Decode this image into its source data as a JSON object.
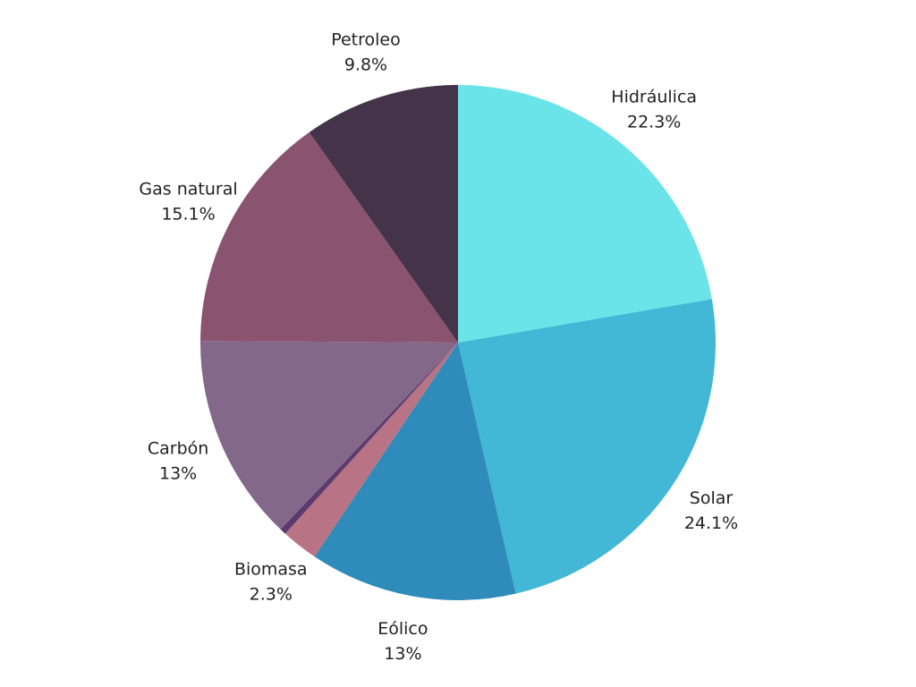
{
  "chart_data": {
    "type": "pie",
    "categories": [
      "Hidráulica",
      "Solar",
      "Eólico",
      "Biomasa",
      null,
      "Carbón",
      "Gas natural",
      "Petroleo"
    ],
    "values": [
      22.3,
      24.1,
      13,
      2.3,
      0.4,
      13,
      15.1,
      9.8
    ],
    "value_labels": [
      "22.3%",
      "24.1%",
      "13%",
      "2.3%",
      null,
      "13%",
      "15.1%",
      "9.8%"
    ],
    "colors": [
      "#6ae4e8",
      "#42b7d6",
      "#2e8bba",
      "#b87385",
      "#5c3a6e",
      "#84688a",
      "#8a5370",
      "#45334a"
    ]
  }
}
